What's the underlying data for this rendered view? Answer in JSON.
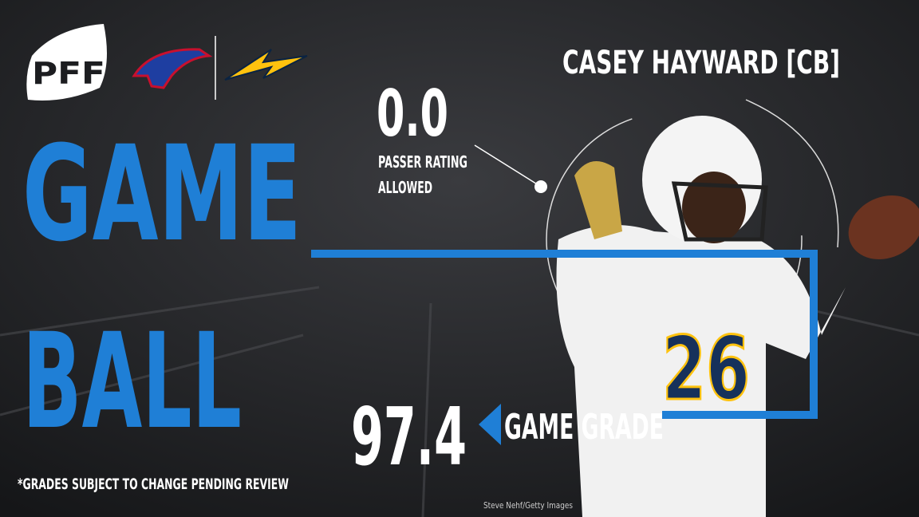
{
  "logo": {
    "text": "PFF"
  },
  "player": {
    "name": "CASEY HAYWARD [CB]"
  },
  "stat": {
    "value": "0.0",
    "label_lines": [
      "PASSER RATING",
      "ALLOWED"
    ]
  },
  "headline": {
    "lines": [
      "GAME",
      "BALL"
    ]
  },
  "grade": {
    "value": "97.4",
    "label": "GAME GRADE"
  },
  "footnote": "*GRADES SUBJECT TO CHANGE PENDING REVIEW",
  "credit": "Steve Nehf/Getty Images"
}
